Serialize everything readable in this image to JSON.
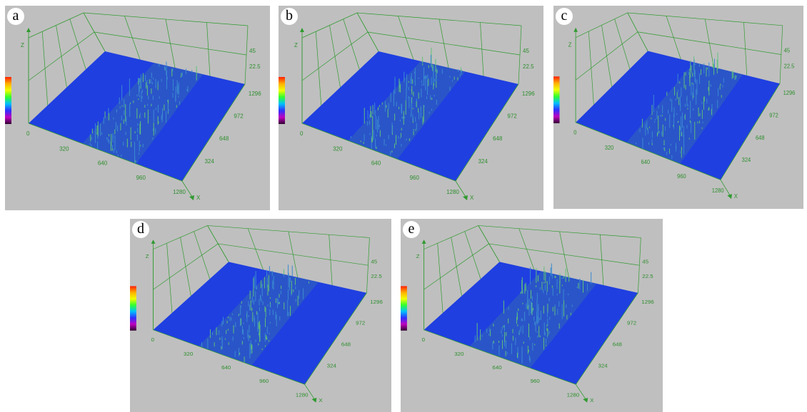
{
  "panels": [
    {
      "label": "a"
    },
    {
      "label": "b"
    },
    {
      "label": "c"
    },
    {
      "label": "d"
    },
    {
      "label": "e"
    }
  ],
  "axes": {
    "z_label": "Z",
    "x_label": "X",
    "origin": "0",
    "z_ticks": [
      "45",
      "22.5"
    ],
    "y_ticks": [
      "1296",
      "972",
      "648",
      "324"
    ],
    "x_ticks": [
      "320",
      "640",
      "960",
      "1280"
    ]
  }
}
